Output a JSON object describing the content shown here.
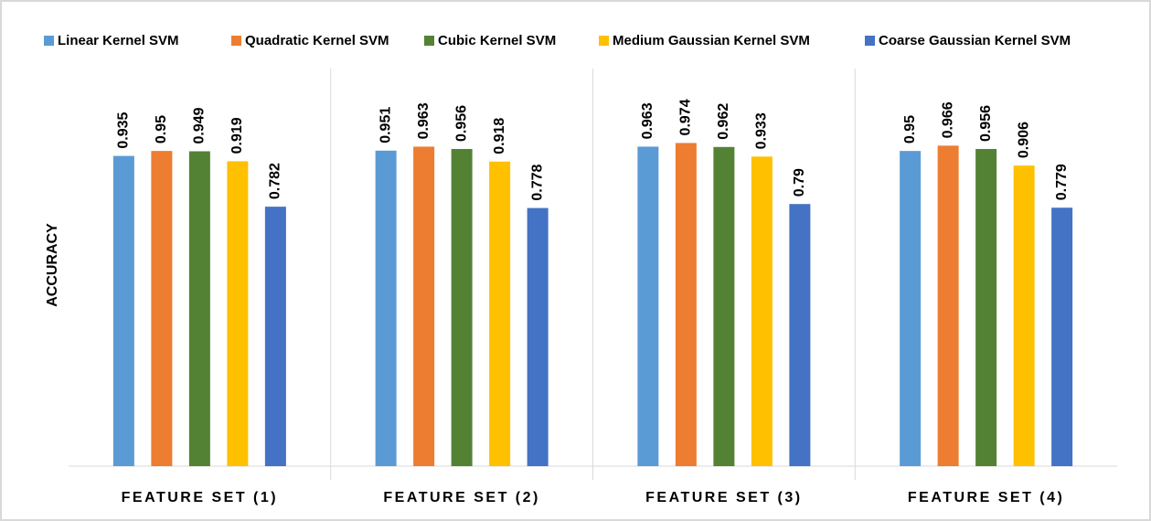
{
  "chart_data": {
    "type": "bar",
    "y_label": "ACCURACY",
    "categories": [
      "FEATURE SET (1)",
      "FEATURE SET (2)",
      "FEATURE SET (3)",
      "FEATURE SET (4)"
    ],
    "series": [
      {
        "name": "Linear Kernel SVM",
        "color": "#5b9bd5",
        "values": [
          0.935,
          0.951,
          0.963,
          0.95
        ]
      },
      {
        "name": "Quadratic Kernel SVM",
        "color": "#ed7d31",
        "values": [
          0.95,
          0.963,
          0.974,
          0.966
        ]
      },
      {
        "name": "Cubic Kernel SVM",
        "color": "#548235",
        "values": [
          0.949,
          0.956,
          0.962,
          0.956
        ]
      },
      {
        "name": "Medium Gaussian Kernel SVM",
        "color": "#ffc000",
        "values": [
          0.919,
          0.918,
          0.933,
          0.906
        ]
      },
      {
        "name": "Coarse Gaussian Kernel SVM",
        "color": "#4472c4",
        "values": [
          0.782,
          0.778,
          0.79,
          0.779
        ]
      }
    ],
    "ylim": [
      0,
      1
    ],
    "legend": "top"
  }
}
